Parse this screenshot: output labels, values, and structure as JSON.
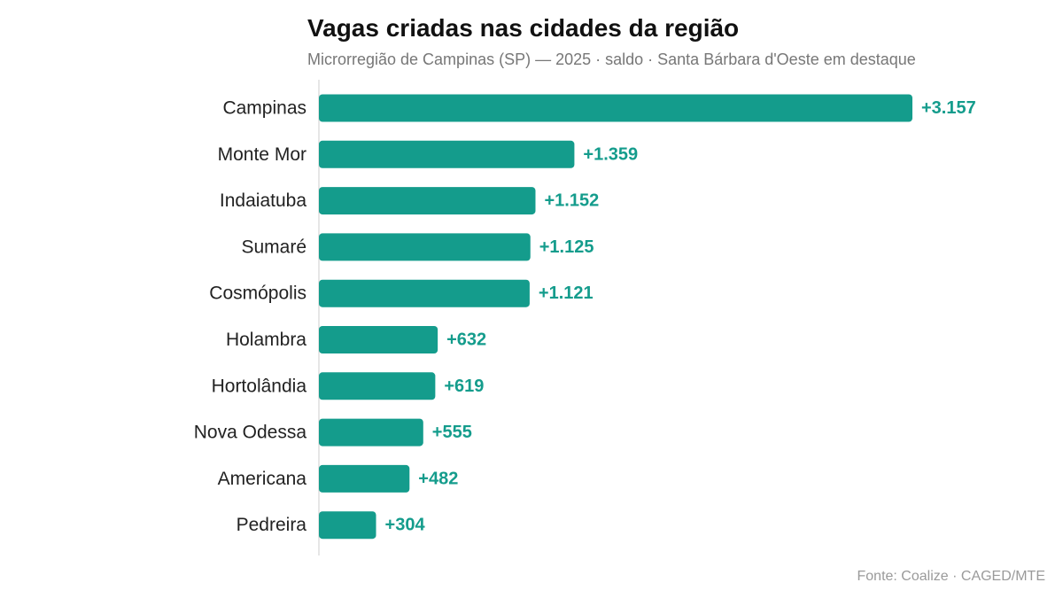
{
  "chart_data": {
    "type": "bar",
    "orientation": "horizontal",
    "title": "Vagas criadas nas cidades da região",
    "subtitle": "Microrregião de Campinas (SP) — 2025 · saldo · Santa Bárbara d'Oeste em destaque",
    "source": "Fonte: Coalize · CAGED/MTE",
    "categories": [
      "Campinas",
      "Monte Mor",
      "Indaiatuba",
      "Sumaré",
      "Cosmópolis",
      "Holambra",
      "Hortolândia",
      "Nova Odessa",
      "Americana",
      "Pedreira"
    ],
    "values": [
      3157,
      1359,
      1152,
      1125,
      1121,
      632,
      619,
      555,
      482,
      304
    ],
    "value_labels": [
      "+3.157",
      "+1.359",
      "+1.152",
      "+1.125",
      "+1.121",
      "+632",
      "+619",
      "+555",
      "+482",
      "+304"
    ],
    "xlim": [
      0,
      3157
    ],
    "grid": false,
    "bar_color": "#149c8c",
    "label_color": "#149c8c",
    "axis_color": "#cccccc"
  }
}
